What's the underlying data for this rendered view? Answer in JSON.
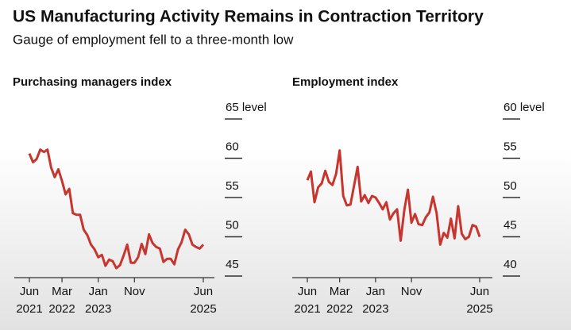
{
  "header": {
    "title": "US Manufacturing Activity Remains in Contraction Territory",
    "subtitle": "Gauge of employment fell to a three-month low"
  },
  "chart_data": [
    {
      "type": "line",
      "title": "Purchasing managers index",
      "color": "#c8352e",
      "categories": [
        "Jun 2021",
        null,
        null,
        null,
        null,
        null,
        null,
        null,
        null,
        "Mar 2022",
        null,
        null,
        null,
        null,
        null,
        null,
        null,
        null,
        null,
        "Jan 2023",
        null,
        null,
        null,
        null,
        null,
        null,
        null,
        null,
        null,
        "Nov",
        null,
        null,
        null,
        null,
        null,
        null,
        null,
        null,
        null,
        null,
        null,
        null,
        null,
        null,
        null,
        null,
        null,
        null,
        "Jun 2025"
      ],
      "values": [
        60.6,
        59.5,
        59.9,
        61.1,
        60.8,
        61.1,
        58.8,
        57.6,
        58.6,
        57.1,
        55.4,
        56.1,
        53.0,
        52.8,
        52.8,
        50.9,
        50.2,
        49.0,
        48.4,
        47.4,
        47.7,
        46.3,
        47.1,
        46.9,
        46.0,
        46.4,
        47.6,
        49.0,
        46.7,
        46.7,
        47.4,
        49.1,
        47.8,
        50.3,
        49.2,
        48.7,
        48.5,
        46.8,
        47.2,
        47.2,
        46.5,
        48.4,
        49.3,
        50.9,
        50.3,
        49.0,
        48.7,
        48.5,
        49.0
      ],
      "ylim": [
        44.8,
        65
      ],
      "yticks": [
        {
          "value": 65,
          "label": "65 level"
        },
        60,
        55,
        50,
        45
      ]
    },
    {
      "type": "line",
      "title": "Employment index",
      "color": "#c8352e",
      "categories": [
        "Jun 2021",
        null,
        null,
        null,
        null,
        null,
        null,
        null,
        null,
        "Mar 2022",
        null,
        null,
        null,
        null,
        null,
        null,
        null,
        null,
        null,
        "Jan 2023",
        null,
        null,
        null,
        null,
        null,
        null,
        null,
        null,
        null,
        "Nov",
        null,
        null,
        null,
        null,
        null,
        null,
        null,
        null,
        null,
        null,
        null,
        null,
        null,
        null,
        null,
        null,
        null,
        null,
        "Jun 2025"
      ],
      "values": [
        52.2,
        53.3,
        49.4,
        51.3,
        51.8,
        53.4,
        52.0,
        51.6,
        53.0,
        56.0,
        50.2,
        49.0,
        49.1,
        51.5,
        53.9,
        49.5,
        50.3,
        49.3,
        50.2,
        50.0,
        49.3,
        48.5,
        49.4,
        47.2,
        48.0,
        48.5,
        44.5,
        48.4,
        51.0,
        46.8,
        47.9,
        46.6,
        46.5,
        47.5,
        48.1,
        50.1,
        48.0,
        44.0,
        45.5,
        44.9,
        47.3,
        44.8,
        48.9,
        45.4,
        44.7,
        45.0,
        46.5,
        46.3,
        45.0
      ],
      "ylim": [
        39.8,
        60
      ],
      "yticks": [
        {
          "value": 60,
          "label": "60 level"
        },
        55,
        50,
        45,
        40
      ]
    }
  ]
}
